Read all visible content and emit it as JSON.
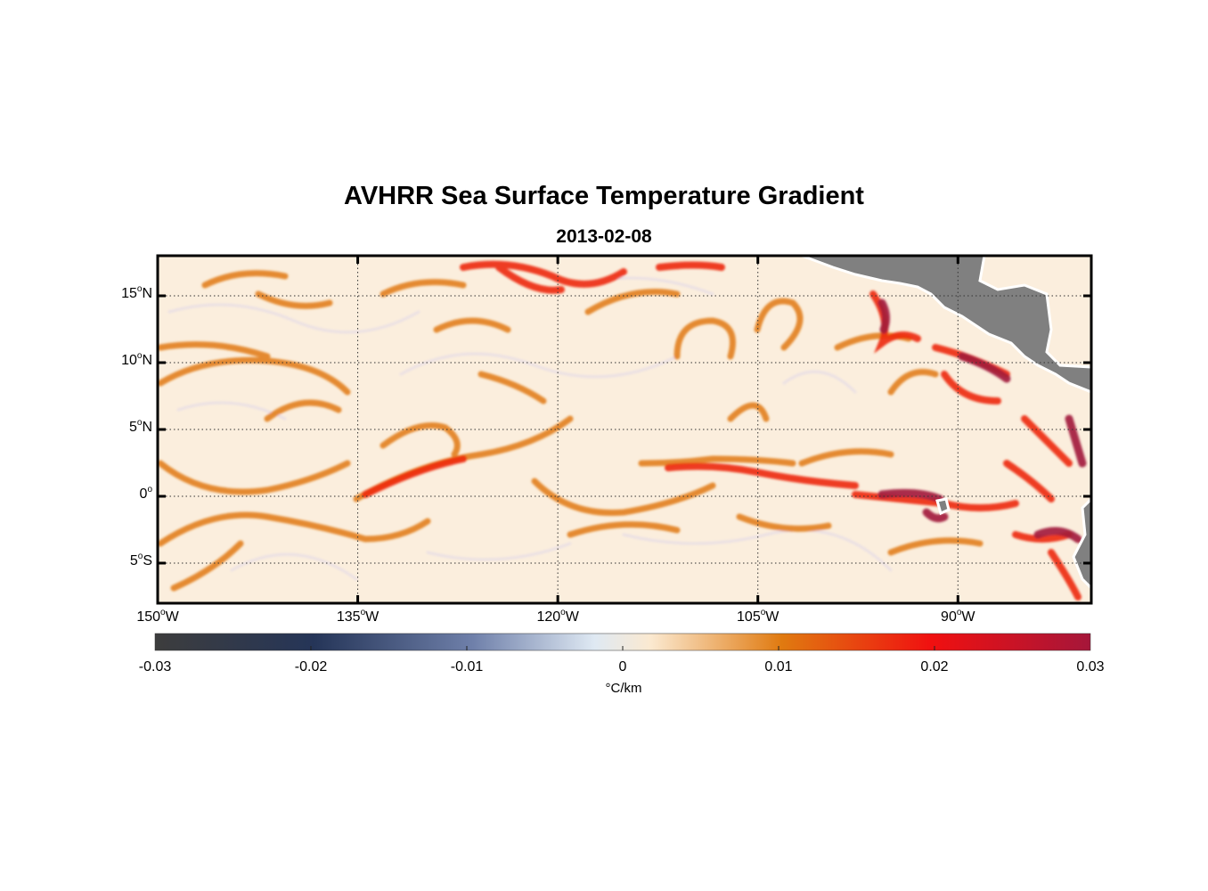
{
  "header": {
    "title": "AVHRR Sea Surface Temperature Gradient",
    "subtitle": "2013-02-08"
  },
  "map": {
    "lon_range": [
      -150,
      -80
    ],
    "lat_range": [
      -8,
      18
    ],
    "lat_ticks": [
      {
        "deg": "15",
        "hemi": "N",
        "value": 15
      },
      {
        "deg": "10",
        "hemi": "N",
        "value": 10
      },
      {
        "deg": "5",
        "hemi": "N",
        "value": 5
      },
      {
        "deg": "0",
        "hemi": "",
        "value": 0
      },
      {
        "deg": "5",
        "hemi": "S",
        "value": -5
      }
    ],
    "lon_ticks": [
      {
        "deg": "150",
        "hemi": "W",
        "value": -150
      },
      {
        "deg": "135",
        "hemi": "W",
        "value": -135
      },
      {
        "deg": "120",
        "hemi": "W",
        "value": -120
      },
      {
        "deg": "105",
        "hemi": "W",
        "value": -105
      },
      {
        "deg": "90",
        "hemi": "W",
        "value": -90
      }
    ],
    "grid": true,
    "land_color": "#808080",
    "ocean_background": "#fbeedd"
  },
  "colorbar": {
    "range": [
      -0.03,
      0.03
    ],
    "tick_labels": [
      "-0.03",
      "-0.02",
      "-0.01",
      "0",
      "0.01",
      "0.02",
      "0.03"
    ],
    "unit": "°C/km",
    "colors": [
      "#3d3d3d",
      "#253558",
      "#6f80aa",
      "#dfe9f3",
      "#fbe9d0",
      "#e07a10",
      "#f01010",
      "#a5163a"
    ]
  }
}
